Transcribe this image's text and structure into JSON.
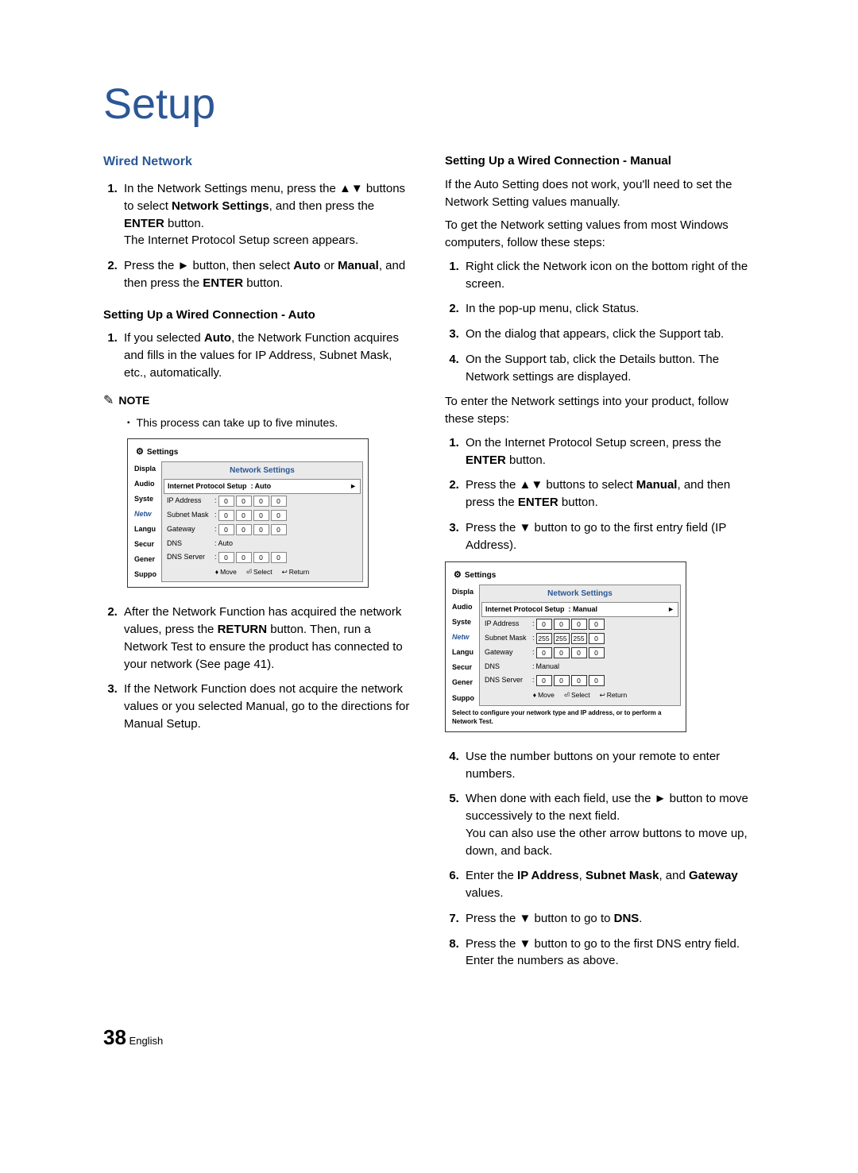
{
  "title": "Setup",
  "left": {
    "heading": "Wired Network",
    "list1": [
      "In the Network Settings menu, press the ▲▼ buttons to select <b>Network Settings</b>, and then press the <b>ENTER</b> button.<br>The Internet Protocol Setup screen appears.",
      "Press the ► button, then select <b>Auto</b> or <b>Manual</b>, and then press the <b>ENTER</b> button."
    ],
    "sub1": "Setting Up a Wired Connection - Auto",
    "list2": [
      "If you selected <b>Auto</b>, the Network Function acquires and fills in the values for IP Address, Subnet Mask, etc., automatically."
    ],
    "note_label": "NOTE",
    "note_text": "This process can take up to five minutes.",
    "list3": [
      "After the Network Function has acquired the network values, press the <b>RETURN</b> button. Then, run a Network Test to ensure the product has connected to your network (See page 41).",
      "If the Network Function does not acquire the network values or you selected Manual, go to the directions for Manual Setup."
    ]
  },
  "right": {
    "sub1": "Setting Up a Wired Connection - Manual",
    "para1": "If the Auto Setting does not work, you'll need to set the Network Setting values manually.",
    "para2": "To get the Network setting values from most Windows computers, follow these steps:",
    "list1": [
      "Right click the Network icon on the bottom right of the screen.",
      "In the pop-up menu, click Status.",
      "On the dialog that appears, click the Support tab.",
      "On the Support tab, click the Details button. The Network settings are displayed."
    ],
    "para3": "To enter the Network settings into your product, follow these steps:",
    "list2": [
      "On the Internet Protocol Setup screen, press the <b>ENTER</b> button.",
      "Press the ▲▼ buttons to select <b>Manual</b>, and then press the <b>ENTER</b> button.",
      "Press the ▼ button to go to the first entry field (IP Address)."
    ],
    "list3": [
      "Use the number buttons on your remote to enter numbers.",
      "When done with each field, use the ► button to move successively to the next field.<br>You can also use the other arrow buttons to move up, down, and back.",
      "Enter the <b>IP Address</b>, <b>Subnet Mask</b>, and <b>Gateway</b> values.",
      "Press the ▼ button to go to <b>DNS</b>.",
      "Press the ▼ button to go to the first DNS entry field. Enter the numbers as above."
    ]
  },
  "settings_panel": {
    "title": "Settings",
    "panel_title": "Network Settings",
    "sidebar": [
      "Displa",
      "Audio",
      "Syste",
      "Netw",
      "Langu",
      "Secur",
      "Gener",
      "Suppo"
    ],
    "active_index": 3,
    "protocol_label": "Internet Protocol Setup",
    "rows": [
      {
        "label": "IP Address"
      },
      {
        "label": "Subnet Mask"
      },
      {
        "label": "Gateway"
      }
    ],
    "dns_label": "DNS",
    "dns_server_label": "DNS Server",
    "footer": [
      {
        "sym": "♦",
        "text": "Move"
      },
      {
        "sym": "⏎",
        "text": "Select"
      },
      {
        "sym": "↩",
        "text": "Return"
      }
    ],
    "auto": {
      "mode": "Auto",
      "ip": [
        "0",
        "0",
        "0",
        "0"
      ],
      "subnet": [
        "0",
        "0",
        "0",
        "0"
      ],
      "gateway": [
        "0",
        "0",
        "0",
        "0"
      ],
      "dns_mode": "Auto",
      "dns": [
        "0",
        "0",
        "0",
        "0"
      ]
    },
    "manual": {
      "mode": "Manual",
      "ip": [
        "0",
        "0",
        "0",
        "0"
      ],
      "subnet": [
        "255",
        "255",
        "255",
        "0"
      ],
      "gateway": [
        "0",
        "0",
        "0",
        "0"
      ],
      "dns_mode": "Manual",
      "dns": [
        "0",
        "0",
        "0",
        "0"
      ],
      "hint": "Select to configure your network type and IP address, or to perform a Network Test."
    }
  },
  "footer": {
    "page": "38",
    "lang": "English"
  }
}
